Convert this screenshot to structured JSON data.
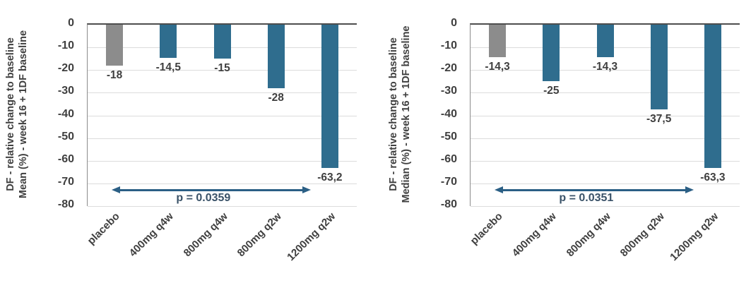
{
  "colors": {
    "bar_active": "#2F6D8E",
    "bar_placebo": "#8C8C8C",
    "gridline": "#DCDCDC",
    "zero_axis": "#4D4D4D",
    "left_axis": "#8C8C8C",
    "text": "#3F3F3F",
    "arrow": "#2B5F85",
    "p_text": "#3A5268"
  },
  "chart_data": [
    {
      "type": "bar",
      "y_axis_title_line1": "DF - relative change to baseline",
      "y_axis_title_line2": "Mean (%) - week 16 + 1DF baseline",
      "categories": [
        "placebo",
        "400mg q4w",
        "800mg q4w",
        "800mg q2w",
        "1200mg q2w"
      ],
      "values": [
        -18,
        -14.5,
        -15,
        -28,
        -63.2
      ],
      "value_labels": [
        "-18",
        "-14,5",
        "-15",
        "-28",
        "-63,2"
      ],
      "series_colors": [
        "placebo-gray",
        "blue",
        "blue",
        "blue",
        "blue"
      ],
      "ylim": [
        -80,
        0
      ],
      "y_ticks": [
        "0",
        "-10",
        "-20",
        "-30",
        "-40",
        "-50",
        "-60",
        "-70",
        "-80"
      ],
      "grid": true,
      "legend": "none",
      "p_value_label": "p = 0.0359"
    },
    {
      "type": "bar",
      "y_axis_title_line1": "DF - relative change to baseline",
      "y_axis_title_line2": "Median (%) - week 16 + 1DF baseline",
      "categories": [
        "placebo",
        "400mg q4w",
        "800mg q4w",
        "800mg q2w",
        "1200mg q2w"
      ],
      "values": [
        -14.3,
        -25,
        -14.3,
        -37.5,
        -63.3
      ],
      "value_labels": [
        "-14,3",
        "-25",
        "-14,3",
        "-37,5",
        "-63,3"
      ],
      "series_colors": [
        "placebo-gray",
        "blue",
        "blue",
        "blue",
        "blue"
      ],
      "ylim": [
        -80,
        0
      ],
      "y_ticks": [
        "0",
        "-10",
        "-20",
        "-30",
        "-40",
        "-50",
        "-60",
        "-70",
        "-80"
      ],
      "grid": true,
      "legend": "none",
      "p_value_label": "p = 0.0351"
    }
  ]
}
